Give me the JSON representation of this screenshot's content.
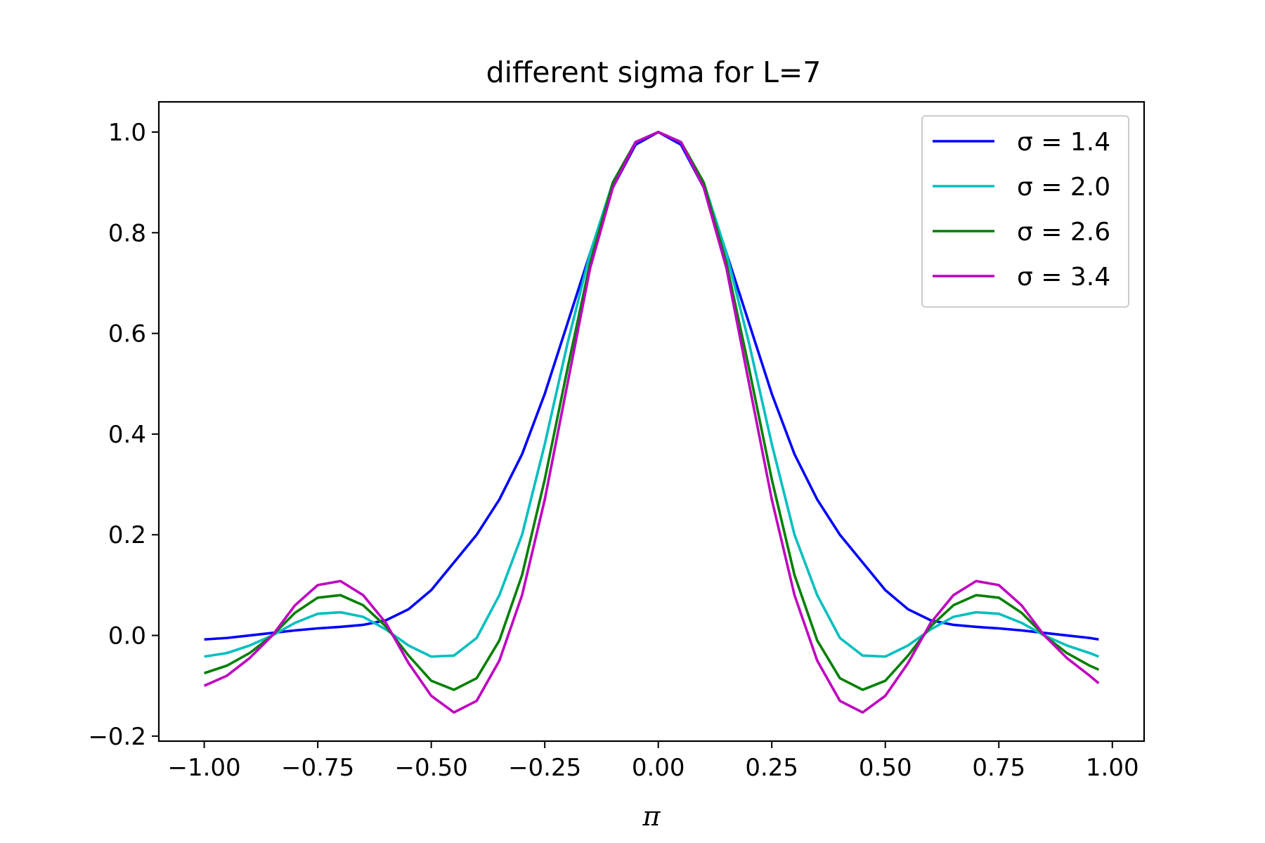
{
  "chart_data": {
    "type": "line",
    "title": "different sigma for L=7",
    "xlabel": "π",
    "ylabel": "",
    "xlim": [
      -1.1,
      1.07
    ],
    "ylim": [
      -0.21,
      1.06
    ],
    "xticks": [
      -1.0,
      -0.75,
      -0.5,
      -0.25,
      0.0,
      0.25,
      0.5,
      0.75,
      1.0
    ],
    "xtick_labels": [
      "−1.00",
      "−0.75",
      "−0.50",
      "−0.25",
      "0.00",
      "0.25",
      "0.50",
      "0.75",
      "1.00"
    ],
    "yticks": [
      -0.2,
      0.0,
      0.2,
      0.4,
      0.6,
      0.8,
      1.0
    ],
    "ytick_labels": [
      "−0.2",
      "0.0",
      "0.2",
      "0.4",
      "0.6",
      "0.8",
      "1.0"
    ],
    "grid": false,
    "legend_position": "upper-right",
    "x": [
      -1.0,
      -0.95,
      -0.9,
      -0.85,
      -0.8,
      -0.75,
      -0.7,
      -0.65,
      -0.6,
      -0.55,
      -0.5,
      -0.45,
      -0.4,
      -0.35,
      -0.3,
      -0.25,
      -0.2,
      -0.15,
      -0.1,
      -0.05,
      0.0,
      0.05,
      0.1,
      0.15,
      0.2,
      0.25,
      0.3,
      0.35,
      0.4,
      0.45,
      0.5,
      0.55,
      0.6,
      0.65,
      0.7,
      0.75,
      0.8,
      0.85,
      0.9,
      0.95,
      0.97
    ],
    "series": [
      {
        "name": "σ = 1.4",
        "color": "#0000ff",
        "values": [
          -0.008,
          -0.005,
          0.0,
          0.005,
          0.01,
          0.014,
          0.017,
          0.021,
          0.03,
          0.052,
          0.09,
          0.145,
          0.2,
          0.27,
          0.36,
          0.48,
          0.62,
          0.76,
          0.89,
          0.975,
          1.0,
          0.975,
          0.89,
          0.76,
          0.62,
          0.48,
          0.36,
          0.27,
          0.2,
          0.145,
          0.09,
          0.052,
          0.03,
          0.021,
          0.017,
          0.014,
          0.01,
          0.005,
          0.0,
          -0.005,
          -0.008
        ]
      },
      {
        "name": "σ = 2.0",
        "color": "#00bfbf",
        "values": [
          -0.042,
          -0.035,
          -0.02,
          0.0,
          0.025,
          0.043,
          0.046,
          0.037,
          0.012,
          -0.02,
          -0.042,
          -0.04,
          -0.005,
          0.08,
          0.2,
          0.38,
          0.58,
          0.76,
          0.9,
          0.98,
          1.0,
          0.98,
          0.9,
          0.76,
          0.58,
          0.38,
          0.2,
          0.08,
          -0.005,
          -0.04,
          -0.042,
          -0.02,
          0.012,
          0.037,
          0.046,
          0.043,
          0.025,
          0.0,
          -0.02,
          -0.035,
          -0.042
        ]
      },
      {
        "name": "σ = 2.6",
        "color": "#008000",
        "values": [
          -0.075,
          -0.06,
          -0.035,
          0.0,
          0.045,
          0.075,
          0.08,
          0.06,
          0.018,
          -0.04,
          -0.09,
          -0.108,
          -0.085,
          -0.01,
          0.12,
          0.31,
          0.53,
          0.74,
          0.9,
          0.98,
          1.0,
          0.98,
          0.9,
          0.74,
          0.53,
          0.31,
          0.12,
          -0.01,
          -0.085,
          -0.108,
          -0.09,
          -0.04,
          0.018,
          0.06,
          0.08,
          0.075,
          0.045,
          0.0,
          -0.035,
          -0.06,
          -0.068
        ]
      },
      {
        "name": "σ = 3.4",
        "color": "#bf00bf",
        "values": [
          -0.1,
          -0.08,
          -0.045,
          0.0,
          0.06,
          0.1,
          0.108,
          0.08,
          0.025,
          -0.055,
          -0.12,
          -0.153,
          -0.13,
          -0.05,
          0.08,
          0.27,
          0.5,
          0.73,
          0.89,
          0.98,
          1.0,
          0.98,
          0.89,
          0.73,
          0.5,
          0.27,
          0.08,
          -0.05,
          -0.13,
          -0.153,
          -0.12,
          -0.055,
          0.025,
          0.08,
          0.108,
          0.1,
          0.06,
          0.0,
          -0.045,
          -0.08,
          -0.095
        ]
      }
    ]
  }
}
